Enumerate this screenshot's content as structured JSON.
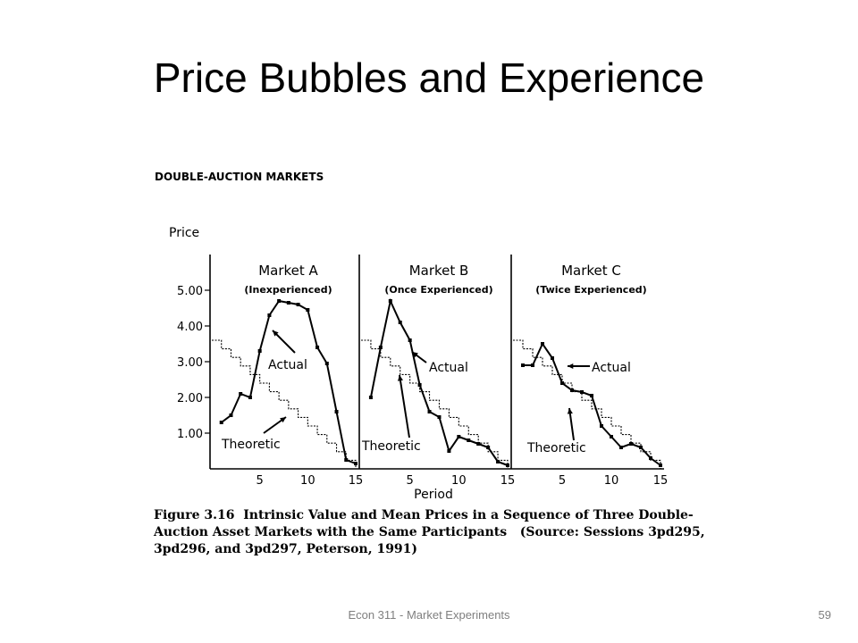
{
  "slide": {
    "title": "Price Bubbles and Experience",
    "footer": "Econ 311 - Market Experiments",
    "page_number": "59"
  },
  "figure": {
    "header": "DOUBLE-AUCTION MARKETS",
    "caption_lines": [
      "Figure 3.16  Intrinsic Value and Mean Prices in a Sequence of Three Double-",
      "Auction Asset Markets with the Same Participants   (Source: Sessions 3pd295,",
      "3pd296, and 3pd297, Peterson, 1991)"
    ]
  },
  "chart_data": {
    "type": "line",
    "ylabel": "Price",
    "xlabel": "Period",
    "ylim": [
      0,
      6
    ],
    "y_ticks": [
      "1.00",
      "2.00",
      "3.00",
      "4.00",
      "5.00"
    ],
    "y_tick_values": [
      1,
      2,
      3,
      4,
      5
    ],
    "x_ticks": [
      "5",
      "10",
      "15"
    ],
    "x_tick_values": [
      5,
      10,
      15
    ],
    "xlim": [
      0,
      15
    ],
    "panels": [
      {
        "title": "Market A",
        "subtitle": "(Inexperienced)",
        "series": [
          {
            "name": "Actual",
            "style": "solid-markers",
            "x": [
              1,
              2,
              3,
              4,
              5,
              6,
              7,
              8,
              9,
              10,
              11,
              12,
              13,
              14,
              15
            ],
            "y": [
              1.3,
              1.5,
              2.1,
              2.0,
              3.3,
              4.3,
              4.7,
              4.65,
              4.6,
              4.45,
              3.4,
              2.95,
              1.6,
              0.25,
              0.15
            ]
          },
          {
            "name": "Theoretic",
            "style": "step",
            "x": [
              0,
              1,
              2,
              3,
              4,
              5,
              6,
              7,
              8,
              9,
              10,
              11,
              12,
              13,
              14,
              15
            ],
            "y": [
              3.6,
              3.36,
              3.12,
              2.88,
              2.64,
              2.4,
              2.16,
              1.92,
              1.68,
              1.44,
              1.2,
              0.96,
              0.72,
              0.48,
              0.24,
              0.0
            ]
          }
        ],
        "annotations": [
          "Actual",
          "Theoretic"
        ]
      },
      {
        "title": "Market B",
        "subtitle": "(Once Experienced)",
        "series": [
          {
            "name": "Actual",
            "style": "solid-markers",
            "x": [
              1,
              2,
              3,
              4,
              5,
              6,
              7,
              8,
              9,
              10,
              11,
              12,
              13,
              14,
              15
            ],
            "y": [
              2.0,
              3.4,
              4.7,
              4.1,
              3.6,
              2.35,
              1.6,
              1.45,
              0.5,
              0.9,
              0.8,
              0.7,
              0.6,
              0.2,
              0.1
            ]
          },
          {
            "name": "Theoretic",
            "style": "step",
            "x": [
              0,
              1,
              2,
              3,
              4,
              5,
              6,
              7,
              8,
              9,
              10,
              11,
              12,
              13,
              14,
              15
            ],
            "y": [
              3.6,
              3.36,
              3.12,
              2.88,
              2.64,
              2.4,
              2.16,
              1.92,
              1.68,
              1.44,
              1.2,
              0.96,
              0.72,
              0.48,
              0.24,
              0.0
            ]
          }
        ],
        "annotations": [
          "Actual",
          "Theoretic"
        ]
      },
      {
        "title": "Market C",
        "subtitle": "(Twice Experienced)",
        "series": [
          {
            "name": "Actual",
            "style": "solid-markers",
            "x": [
              1,
              2,
              3,
              4,
              5,
              6,
              7,
              8,
              9,
              10,
              11,
              12,
              13,
              14,
              15
            ],
            "y": [
              2.9,
              2.9,
              3.5,
              3.1,
              2.4,
              2.2,
              2.15,
              2.05,
              1.2,
              0.9,
              0.6,
              0.7,
              0.6,
              0.3,
              0.1
            ]
          },
          {
            "name": "Theoretic",
            "style": "step",
            "x": [
              0,
              1,
              2,
              3,
              4,
              5,
              6,
              7,
              8,
              9,
              10,
              11,
              12,
              13,
              14,
              15
            ],
            "y": [
              3.6,
              3.36,
              3.12,
              2.88,
              2.64,
              2.4,
              2.16,
              1.92,
              1.68,
              1.44,
              1.2,
              0.96,
              0.72,
              0.48,
              0.24,
              0.0
            ]
          }
        ],
        "annotations": [
          "Actual",
          "Theoretic"
        ]
      }
    ]
  }
}
